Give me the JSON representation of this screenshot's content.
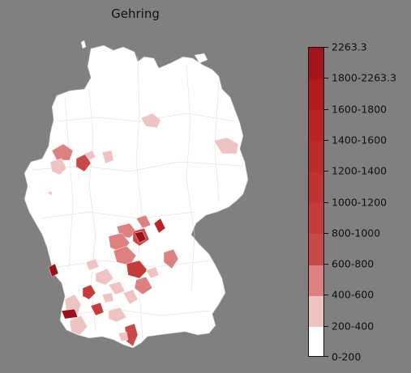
{
  "title": "Gehring",
  "legend": {
    "labels": [
      "0-200",
      "200-400",
      "400-600",
      "600-800",
      "800-1000",
      "1000-1200",
      "1200-1400",
      "1400-1600",
      "1600-1800",
      "1800-2263.3",
      "2263.3"
    ],
    "colors": [
      "#ffffff",
      "#f0c3c3",
      "#dc8080",
      "#c94848",
      "#c43c3c",
      "#c13333",
      "#be2b2b",
      "#b92424",
      "#b01c1c",
      "#a6141c",
      "#9e0f1e"
    ]
  },
  "colors": {
    "background": "#808080",
    "land": "#ffffff",
    "border": "#c8c8c8"
  }
}
